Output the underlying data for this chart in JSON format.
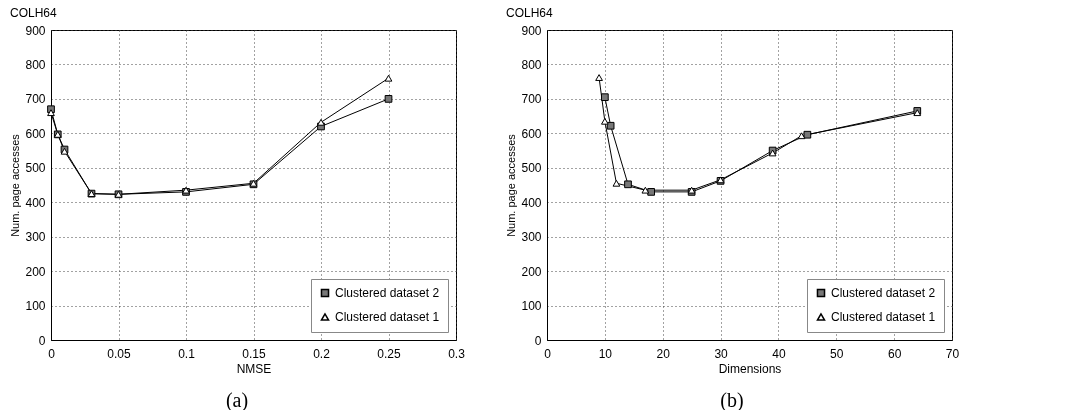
{
  "chart_data": [
    {
      "type": "line",
      "title": "COLH64",
      "xlabel": "NMSE",
      "ylabel": "Num. page accesses",
      "xlim": [
        0,
        0.3
      ],
      "xticks": [
        0,
        0.05,
        0.1,
        0.15,
        0.2,
        0.25,
        0.3
      ],
      "ylim": [
        0,
        900
      ],
      "yticks": [
        0,
        100,
        200,
        300,
        400,
        500,
        600,
        700,
        800,
        900
      ],
      "grid": true,
      "legend": "bottom right",
      "annotations": [
        "(a)"
      ],
      "series": [
        {
          "name": "Clustered dataset 2",
          "color": "#000000",
          "marker": "square",
          "x": [
            0,
            0.005,
            0.01,
            0.03,
            0.05,
            0.1,
            0.15,
            0.2,
            0.25
          ],
          "values": [
            670,
            597,
            553,
            425,
            423,
            430,
            452,
            620,
            700
          ]
        },
        {
          "name": "Clustered dataset 1",
          "color": "#000000",
          "marker": "triangle",
          "x": [
            0,
            0.005,
            0.01,
            0.03,
            0.05,
            0.1,
            0.15,
            0.2,
            0.25
          ],
          "values": [
            660,
            597,
            548,
            425,
            423,
            435,
            455,
            632,
            760
          ]
        }
      ]
    },
    {
      "type": "line",
      "title": "COLH64",
      "xlabel": "Dimensions",
      "ylabel": "Num. page accesses",
      "xlim": [
        0,
        70
      ],
      "xticks": [
        0,
        10,
        20,
        30,
        40,
        50,
        60,
        70
      ],
      "ylim": [
        0,
        900
      ],
      "yticks": [
        0,
        100,
        200,
        300,
        400,
        500,
        600,
        700,
        800,
        900
      ],
      "grid": true,
      "legend": "bottom right",
      "annotations": [
        "(b)"
      ],
      "series": [
        {
          "name": "Clustered dataset 2",
          "color": "#000000",
          "marker": "square",
          "x": [
            10,
            11,
            14,
            18,
            25,
            30,
            39,
            45,
            64
          ],
          "values": [
            705,
            622,
            452,
            430,
            430,
            462,
            550,
            596,
            665
          ]
        },
        {
          "name": "Clustered dataset 1",
          "color": "#000000",
          "marker": "triangle",
          "x": [
            9,
            10,
            12,
            17,
            25,
            30,
            39,
            44,
            64
          ],
          "values": [
            762,
            635,
            455,
            435,
            435,
            465,
            543,
            593,
            660
          ]
        }
      ]
    }
  ]
}
